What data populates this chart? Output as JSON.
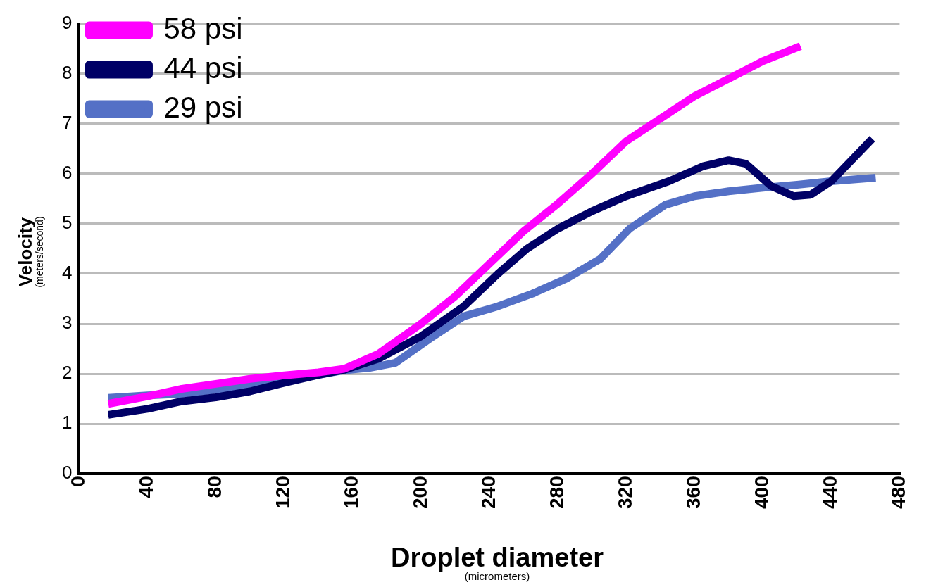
{
  "chart_data": {
    "type": "line",
    "xlabel": "Droplet diameter (micrometers)",
    "ylabel": "Velocity (meters/second)",
    "xlim": [
      0,
      480
    ],
    "xticks": [
      0,
      40,
      80,
      120,
      160,
      200,
      240,
      280,
      320,
      360,
      400,
      440,
      480
    ],
    "ylim": [
      0,
      9
    ],
    "yticks": [
      0,
      1,
      2,
      3,
      4,
      5,
      6,
      7,
      8,
      9
    ],
    "grid": "y",
    "legend": "top left",
    "marker": "none",
    "line_style": "solid",
    "series": [
      {
        "name": "58 psi",
        "color": "#ff00ff",
        "x": [
          17,
          40,
          60,
          80,
          100,
          120,
          140,
          155,
          175,
          200,
          220,
          240,
          260,
          280,
          300,
          320,
          340,
          360,
          380,
          400,
          422
        ],
        "values": [
          1.4,
          1.55,
          1.7,
          1.8,
          1.9,
          1.97,
          2.03,
          2.1,
          2.4,
          3.0,
          3.55,
          4.2,
          4.85,
          5.4,
          6.0,
          6.65,
          7.1,
          7.55,
          7.9,
          8.25,
          8.55
        ]
      },
      {
        "name": "44 psi",
        "color": "#000066",
        "x": [
          17,
          40,
          60,
          80,
          100,
          120,
          140,
          155,
          175,
          200,
          225,
          245,
          262,
          280,
          300,
          320,
          345,
          365,
          380,
          390,
          405,
          418,
          428,
          440,
          464
        ],
        "values": [
          1.18,
          1.3,
          1.45,
          1.53,
          1.65,
          1.82,
          1.98,
          2.08,
          2.3,
          2.75,
          3.35,
          4.0,
          4.5,
          4.9,
          5.25,
          5.55,
          5.85,
          6.15,
          6.27,
          6.2,
          5.75,
          5.55,
          5.58,
          5.85,
          6.7
        ]
      },
      {
        "name": "29 psi",
        "color": "#5470c6",
        "x": [
          17,
          40,
          60,
          80,
          100,
          120,
          140,
          155,
          170,
          185,
          205,
          225,
          245,
          265,
          285,
          305,
          322,
          343,
          360,
          380,
          400,
          420,
          440,
          466
        ],
        "values": [
          1.52,
          1.57,
          1.6,
          1.68,
          1.77,
          1.85,
          1.98,
          2.07,
          2.12,
          2.22,
          2.7,
          3.15,
          3.35,
          3.6,
          3.9,
          4.3,
          4.9,
          5.38,
          5.55,
          5.65,
          5.72,
          5.78,
          5.85,
          5.92
        ]
      }
    ]
  }
}
